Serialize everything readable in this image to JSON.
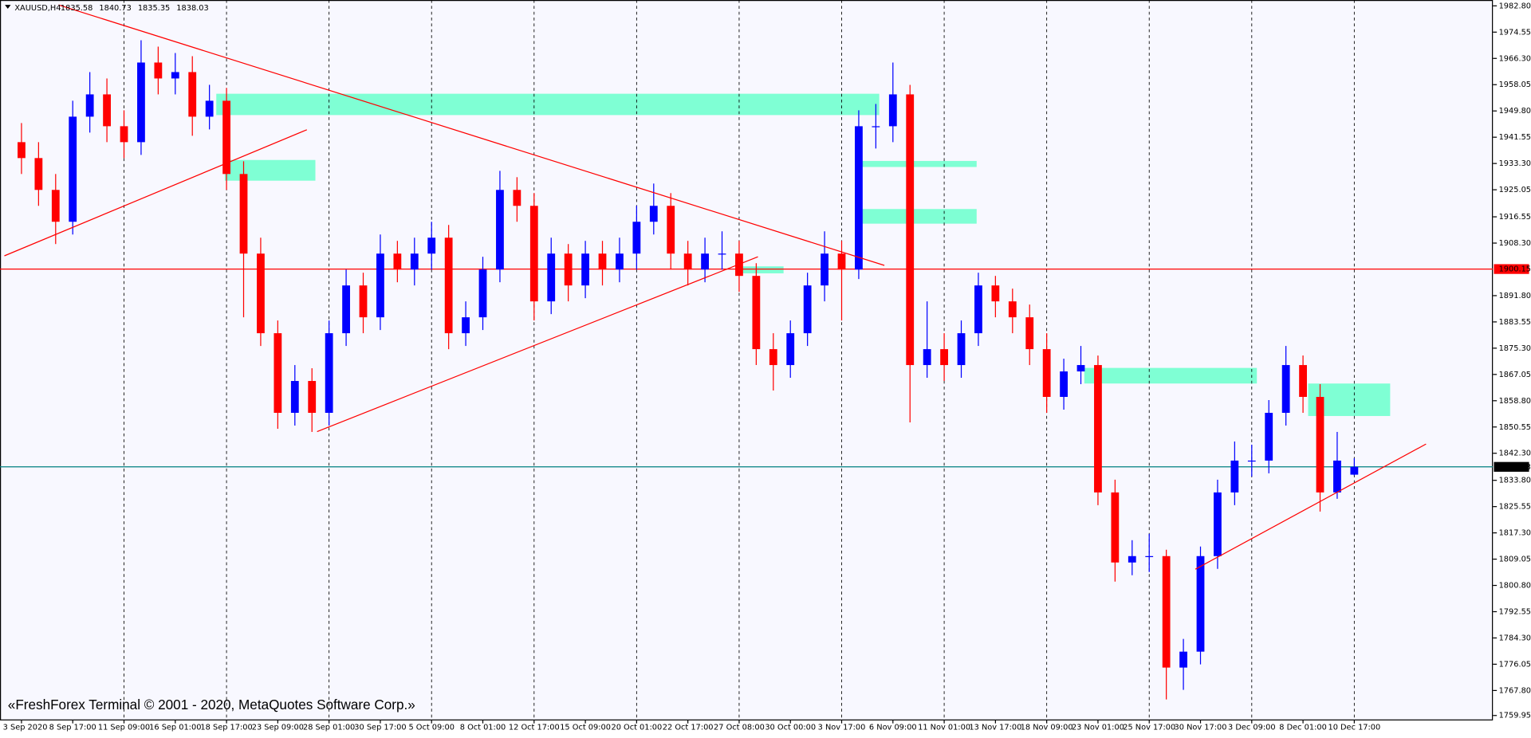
{
  "chart_data": {
    "type": "candlestick",
    "title": "XAUUSD,H4",
    "copyright": "«FreshForex Terminal © 2001 - 2020, MetaQuotes Software Corp.»",
    "categories": [
      "3 Sep 2020",
      null,
      null,
      "8 Sep 17:00",
      null,
      null,
      "11 Sep 09:00",
      null,
      null,
      "16 Sep 01:00",
      null,
      null,
      "18 Sep 17:00",
      null,
      null,
      "23 Sep 09:00",
      null,
      null,
      "28 Sep 01:00",
      null,
      null,
      "30 Sep 17:00",
      null,
      null,
      "5 Oct 09:00",
      null,
      null,
      "8 Oct 01:00",
      null,
      null,
      "12 Oct 17:00",
      null,
      null,
      "15 Oct 09:00",
      null,
      null,
      "20 Oct 01:00",
      null,
      null,
      "22 Oct 17:00",
      null,
      null,
      "27 Oct 08:00",
      null,
      null,
      "30 Oct 00:00",
      null,
      null,
      "3 Nov 17:00",
      null,
      null,
      "6 Nov 09:00",
      null,
      null,
      "11 Nov 01:00",
      null,
      null,
      "13 Nov 17:00",
      null,
      null,
      "18 Nov 09:00",
      null,
      null,
      "23 Nov 01:00",
      null,
      null,
      "25 Nov 17:00",
      null,
      null,
      "30 Nov 17:00",
      null,
      null,
      "3 Dec 09:00",
      null,
      null,
      "8 Dec 01:00",
      null,
      null,
      "10 Dec 17:00"
    ],
    "open": [
      1940,
      1935,
      1925,
      1915,
      1948,
      1955,
      1945,
      1940,
      1965,
      1960,
      1962,
      1948,
      1953,
      1930,
      1905,
      1880,
      1855,
      1865,
      1855,
      1880,
      1895,
      1885,
      1905,
      1900,
      1905,
      1910,
      1880,
      1885,
      1900,
      1925,
      1920,
      1890,
      1905,
      1895,
      1905,
      1900,
      1905,
      1915,
      1920,
      1905,
      1900,
      1905,
      1905,
      1898,
      1875,
      1870,
      1880,
      1895,
      1905,
      1900,
      1945,
      1945,
      1955,
      1870,
      1875,
      1870,
      1880,
      1895,
      1890,
      1885,
      1875,
      1860,
      1868,
      1870,
      1830,
      1808,
      1810,
      1810,
      1775,
      1780,
      1810,
      1830,
      1840,
      1840,
      1855,
      1870,
      1860,
      1830,
      1835.58
    ],
    "high": [
      1946,
      1940,
      1930,
      1953,
      1962,
      1960,
      1950,
      1972,
      1970,
      1968,
      1967,
      1958,
      1957,
      1934,
      1910,
      1884,
      1870,
      1869,
      1884,
      1900,
      1899,
      1911,
      1909,
      1910,
      1915,
      1914,
      1890,
      1904,
      1931,
      1929,
      1924,
      1910,
      1908,
      1909,
      1909,
      1910,
      1920,
      1927,
      1924,
      1909,
      1910,
      1912,
      1909,
      1902,
      1880,
      1884,
      1899,
      1912,
      1909,
      1950,
      1952,
      1965,
      1958,
      1890,
      1880,
      1884,
      1899,
      1898,
      1894,
      1889,
      1880,
      1872,
      1876,
      1873,
      1834,
      1815,
      1817,
      1812,
      1784,
      1813,
      1834,
      1846,
      1845,
      1859,
      1876,
      1873,
      1864,
      1849,
      1840.73
    ],
    "low": [
      1930,
      1920,
      1908,
      1911,
      1943,
      1940,
      1935,
      1936,
      1955,
      1955,
      1942,
      1944,
      1925,
      1885,
      1876,
      1850,
      1851,
      1849,
      1851,
      1876,
      1880,
      1881,
      1896,
      1895,
      1900,
      1875,
      1876,
      1881,
      1896,
      1915,
      1884,
      1886,
      1890,
      1891,
      1895,
      1896,
      1900,
      1911,
      1900,
      1895,
      1896,
      1900,
      1893,
      1870,
      1862,
      1866,
      1876,
      1890,
      1884,
      1897,
      1938,
      1940,
      1852,
      1866,
      1865,
      1866,
      1876,
      1885,
      1880,
      1870,
      1855,
      1856,
      1864,
      1826,
      1802,
      1804,
      1805,
      1765,
      1768,
      1776,
      1806,
      1826,
      1835,
      1836,
      1851,
      1855,
      1824,
      1828,
      1835.35
    ],
    "close": [
      1935,
      1925,
      1915,
      1948,
      1955,
      1945,
      1940,
      1965,
      1960,
      1962,
      1948,
      1953,
      1930,
      1905,
      1880,
      1855,
      1865,
      1855,
      1880,
      1895,
      1885,
      1905,
      1900,
      1905,
      1910,
      1880,
      1885,
      1900,
      1925,
      1920,
      1890,
      1905,
      1895,
      1905,
      1900,
      1905,
      1915,
      1920,
      1905,
      1900,
      1905,
      1905,
      1898,
      1875,
      1870,
      1880,
      1895,
      1905,
      1900,
      1945,
      1945,
      1955,
      1870,
      1875,
      1870,
      1880,
      1895,
      1890,
      1885,
      1875,
      1860,
      1868,
      1870,
      1830,
      1808,
      1810,
      1810,
      1775,
      1780,
      1810,
      1830,
      1840,
      1840,
      1855,
      1870,
      1860,
      1830,
      1840,
      1838.03
    ],
    "up_color": "#0000ff",
    "down_color": "#ff0000",
    "ylim": [
      1758.4,
      1984.64
    ],
    "yticks": [
      {
        "value": 1759.95,
        "label": "1759.95"
      },
      {
        "value": 1767.8,
        "label": "1767.80"
      },
      {
        "value": 1776.05,
        "label": "1776.05"
      },
      {
        "value": 1784.3,
        "label": "1784.30"
      },
      {
        "value": 1792.55,
        "label": "1792.55"
      },
      {
        "value": 1800.8,
        "label": "1800.80"
      },
      {
        "value": 1809.05,
        "label": "1809.05"
      },
      {
        "value": 1817.3,
        "label": "1817.30"
      },
      {
        "value": 1825.55,
        "label": "1825.55"
      },
      {
        "value": 1833.8,
        "label": "1833.80"
      },
      {
        "value": 1842.3,
        "label": "1842.30"
      },
      {
        "value": 1850.55,
        "label": "1850.55"
      },
      {
        "value": 1858.8,
        "label": "1858.80"
      },
      {
        "value": 1867.05,
        "label": "1867.05"
      },
      {
        "value": 1875.3,
        "label": "1875.30"
      },
      {
        "value": 1883.55,
        "label": "1883.55"
      },
      {
        "value": 1891.8,
        "label": "1891.80"
      },
      {
        "value": 1908.3,
        "label": "1908.30"
      },
      {
        "value": 1916.55,
        "label": "1916.55"
      },
      {
        "value": 1925.05,
        "label": "1925.05"
      },
      {
        "value": 1933.3,
        "label": "1933.30"
      },
      {
        "value": 1941.55,
        "label": "1941.55"
      },
      {
        "value": 1949.8,
        "label": "1949.80"
      },
      {
        "value": 1958.05,
        "label": "1958.05"
      },
      {
        "value": 1966.3,
        "label": "1966.30"
      },
      {
        "value": 1974.55,
        "label": "1974.55"
      },
      {
        "value": 1982.8,
        "label": "1982.80"
      }
    ],
    "grid": true,
    "hlines": [
      {
        "value": 1900.15,
        "color": "#ff0000"
      }
    ],
    "last_price_color": "#008080",
    "zones": [
      {
        "from": 11.4,
        "to": 50.2,
        "low": 1948.5,
        "high": 1955.2
      },
      {
        "from": 11.9,
        "to": 17.2,
        "low": 1927.9,
        "high": 1934.4
      },
      {
        "from": 49,
        "to": 55.9,
        "low": 1932.2,
        "high": 1934.1
      },
      {
        "from": 48.9,
        "to": 55.9,
        "low": 1914.4,
        "high": 1919
      },
      {
        "from": 42.1,
        "to": 44.6,
        "low": 1898.8,
        "high": 1901
      },
      {
        "from": 62.2,
        "to": 72.3,
        "low": 1864.2,
        "high": 1869.1
      },
      {
        "from": 75.3,
        "to": 80.1,
        "low": 1854,
        "high": 1864.2
      }
    ],
    "zone_color": "#7fffd4",
    "trendlines": [
      {
        "x": [
          -1,
          16.7
        ],
        "y": [
          1904.3,
          1943.9
        ]
      },
      {
        "x": [
          2.17,
          50.5
        ],
        "y": [
          1983.1,
          1901.3
        ]
      },
      {
        "x": [
          17.3,
          43.1
        ],
        "y": [
          1849.1,
          1904
        ]
      },
      {
        "x": [
          68.7,
          82.2
        ],
        "y": [
          1805.9,
          1845.2
        ]
      }
    ],
    "trendline_color": "#ff0000"
  }
}
